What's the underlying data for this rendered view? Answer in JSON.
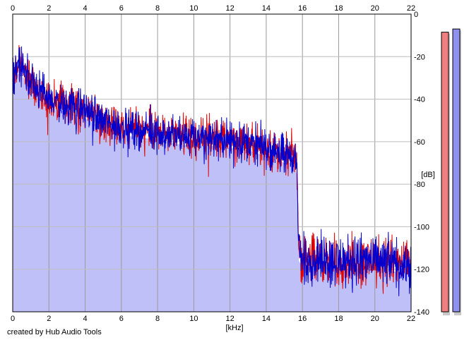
{
  "credit": "created by Hub Audio Tools",
  "chart_data": {
    "type": "line",
    "xlabel": "[kHz]",
    "ylabel": "[dB]",
    "xlim": [
      0,
      22
    ],
    "ylim": [
      -140,
      0
    ],
    "x_ticks": [
      0,
      2,
      4,
      6,
      8,
      10,
      12,
      14,
      16,
      18,
      20,
      22
    ],
    "y_ticks": [
      0,
      -20,
      -40,
      -60,
      -80,
      -100,
      -120,
      -140
    ],
    "grid": true,
    "spectrum_envelope": {
      "x": [
        0,
        0.3,
        0.6,
        1,
        1.5,
        2,
        3,
        4,
        5,
        6,
        7,
        8,
        9,
        10,
        11,
        12,
        13,
        14,
        15,
        15.5,
        15.7,
        15.75,
        15.8,
        16,
        17,
        18,
        19,
        20,
        21,
        22
      ],
      "y": [
        -33,
        -28,
        -30,
        -36,
        -40,
        -44,
        -46,
        -49,
        -54,
        -57,
        -58,
        -59,
        -61,
        -62,
        -62,
        -63,
        -64,
        -67,
        -70,
        -70,
        -76,
        -95,
        -116,
        -119,
        -119,
        -120,
        -120,
        -120,
        -121,
        -122
      ]
    },
    "series": [
      {
        "color": "#e00000"
      },
      {
        "color": "#0000d0"
      }
    ],
    "fill_color": "#c0c0f8",
    "level_meters": [
      {
        "level_db": -8.5,
        "fill_color": "#f08080"
      },
      {
        "level_db": -7.0,
        "fill_color": "#9090ee"
      }
    ]
  }
}
